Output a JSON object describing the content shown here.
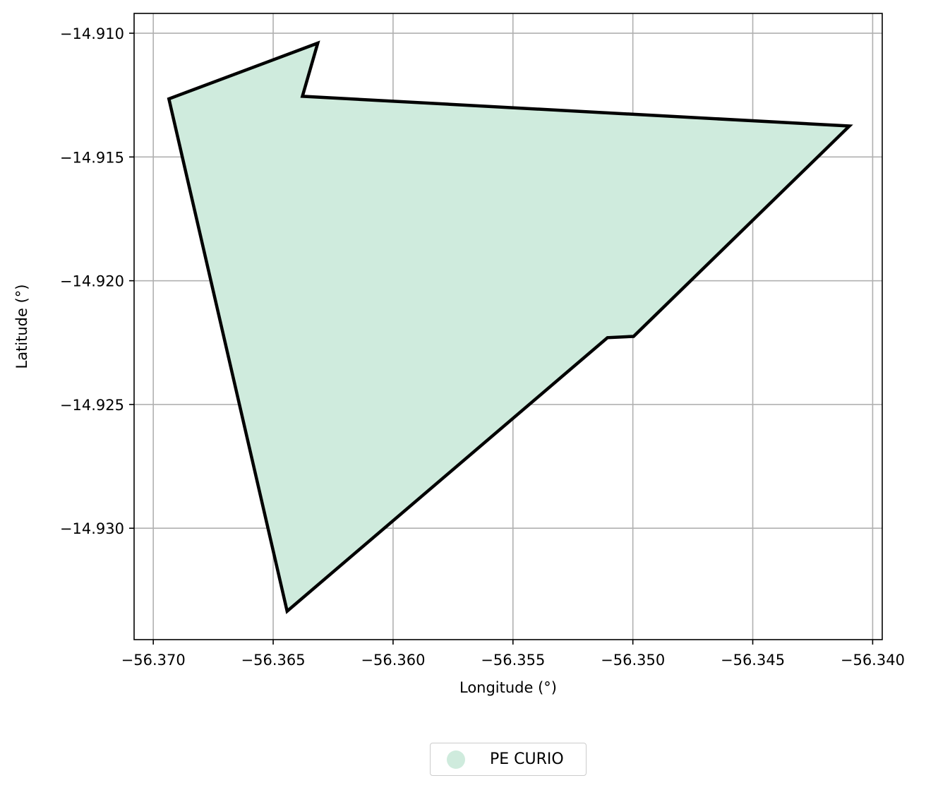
{
  "chart_data": {
    "type": "map-polygon",
    "title": "",
    "xlabel": "Longitude (°)",
    "ylabel": "Latitude (°)",
    "xlim": [
      -56.3708,
      -56.3396
    ],
    "ylim": [
      -14.9345,
      -14.9092
    ],
    "xticks": [
      -56.37,
      -56.365,
      -56.36,
      -56.355,
      -56.35,
      -56.345,
      -56.34
    ],
    "xtick_labels": [
      "−56.370",
      "−56.365",
      "−56.360",
      "−56.355",
      "−56.350",
      "−56.345",
      "−56.340"
    ],
    "yticks": [
      -14.91,
      -14.915,
      -14.92,
      -14.925,
      -14.93
    ],
    "ytick_labels": [
      "−14.910",
      "−14.915",
      "−14.920",
      "−14.925",
      "−14.930"
    ],
    "grid": true,
    "legend_position": "bottom-center",
    "series": [
      {
        "name": "PE CURIO",
        "fill_color": "#cfebdd",
        "edge_color": "#000000",
        "polygon": [
          [
            -56.36314,
            -14.9104
          ],
          [
            -56.36378,
            -14.91255
          ],
          [
            -56.34097,
            -14.91375
          ],
          [
            -56.34997,
            -14.92225
          ],
          [
            -56.35106,
            -14.9223
          ],
          [
            -56.36442,
            -14.93335
          ],
          [
            -56.36935,
            -14.91265
          ],
          [
            -56.36314,
            -14.9104
          ]
        ]
      }
    ]
  }
}
